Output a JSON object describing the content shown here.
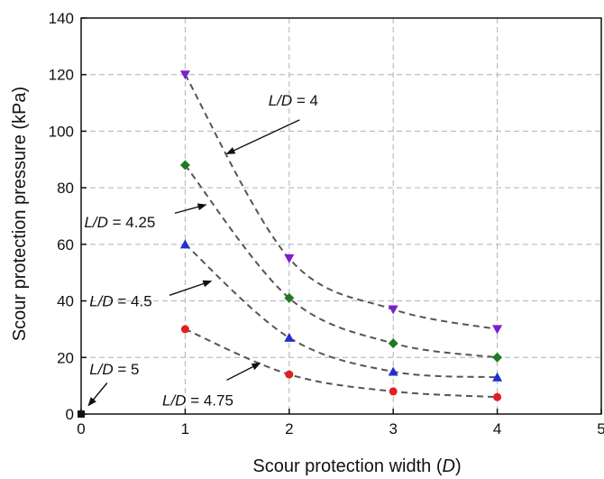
{
  "chart_data": {
    "type": "scatter",
    "xlabel_text": "Scour protection width (",
    "xlabel_var": "D",
    "xlabel_close": ")",
    "ylabel": "Scour protection pressure (kPa)",
    "xlim": [
      0,
      5
    ],
    "ylim": [
      0,
      140
    ],
    "xticks": [
      "0",
      "1",
      "2",
      "3",
      "4",
      "5"
    ],
    "yticks": [
      "0",
      "20",
      "40",
      "60",
      "80",
      "100",
      "120",
      "140"
    ],
    "grid": true,
    "series": [
      {
        "id": "ld4",
        "marker": "triangle-down",
        "color": "#7b1fd1",
        "x": [
          1,
          2,
          3,
          4
        ],
        "y": [
          120,
          55,
          37,
          30
        ]
      },
      {
        "id": "ld425",
        "marker": "diamond",
        "color": "#1f7a1f",
        "x": [
          1,
          2,
          3,
          4
        ],
        "y": [
          88,
          41,
          25,
          20
        ]
      },
      {
        "id": "ld45",
        "marker": "triangle-up",
        "color": "#1f2fd1",
        "x": [
          1,
          2,
          3,
          4
        ],
        "y": [
          60,
          27,
          15,
          13
        ]
      },
      {
        "id": "ld475",
        "marker": "circle",
        "color": "#e02020",
        "x": [
          1,
          2,
          3,
          4
        ],
        "y": [
          30,
          14,
          8,
          6
        ]
      },
      {
        "id": "ld5",
        "marker": "square",
        "color": "#111111",
        "x": [
          0
        ],
        "y": [
          0
        ]
      }
    ],
    "annotations": [
      {
        "var": "L/D",
        "rest": " = 4",
        "text_x": 1.8,
        "text_y": 111,
        "arrow_from": [
          2.1,
          104
        ],
        "arrow_to": [
          1.4,
          92
        ]
      },
      {
        "var": "L/D",
        "rest": " = 4.25",
        "text_x": 0.03,
        "text_y": 68,
        "arrow_from": [
          0.9,
          71
        ],
        "arrow_to": [
          1.2,
          74
        ]
      },
      {
        "var": "L/D",
        "rest": " = 4.5",
        "text_x": 0.08,
        "text_y": 40,
        "arrow_from": [
          0.85,
          42
        ],
        "arrow_to": [
          1.25,
          47
        ]
      },
      {
        "var": "L/D",
        "rest": " = 5",
        "text_x": 0.08,
        "text_y": 16,
        "arrow_from": [
          0.25,
          11
        ],
        "arrow_to": [
          0.07,
          3
        ]
      },
      {
        "var": "L/D",
        "rest": " = 4.75",
        "text_x": 0.78,
        "text_y": 5,
        "arrow_from": [
          1.4,
          12
        ],
        "arrow_to": [
          1.72,
          18
        ]
      }
    ]
  }
}
